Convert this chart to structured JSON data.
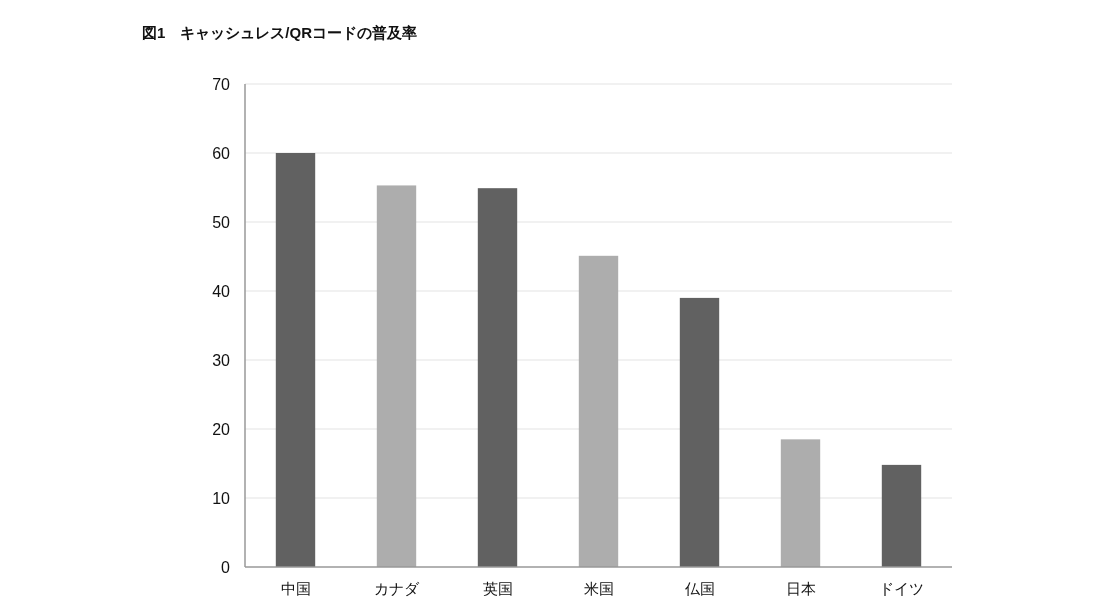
{
  "chart_data": {
    "type": "bar",
    "title": "図1　キャッシュレス/QRコードの普及率",
    "categories": [
      "中国",
      "カナダ",
      "英国",
      "米国",
      "仏国",
      "日本",
      "ドイツ"
    ],
    "values": [
      60,
      55.3,
      54.9,
      45.1,
      39.0,
      18.5,
      14.8
    ],
    "colors": [
      "#616161",
      "#adadad",
      "#616161",
      "#adadad",
      "#616161",
      "#adadad",
      "#616161"
    ],
    "ylim": [
      0,
      70
    ],
    "yticks": [
      0,
      10,
      20,
      30,
      40,
      50,
      60,
      70
    ],
    "grid": "y"
  }
}
